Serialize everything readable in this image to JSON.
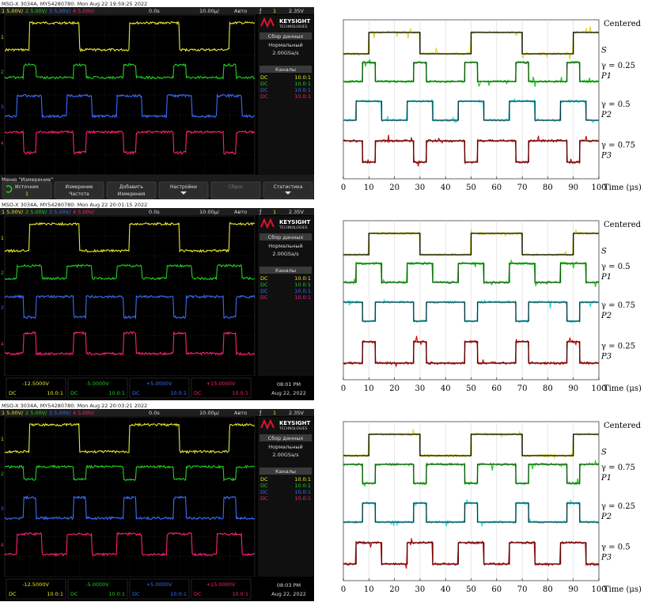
{
  "scopes": [
    {
      "caption": "MSO-X 3034A, MY54280780: Mon Aug 22 19:59:25 2022",
      "header": {
        "ch1": "1  5.00V/",
        "ch2": "2  5.00V/",
        "ch3": "3  5.00V/",
        "ch4": "4  5.00V/",
        "delay": "0.0s",
        "timebase": "10.00µ/",
        "mode": "Авто",
        "trig_sym": "ƒ",
        "trig_ch": "1",
        "trig_level": "2.35V"
      },
      "side": {
        "brand": "KEYSIGHT",
        "brand_sub": "TECHNOLOGIES",
        "acq_title": "Сбор данных",
        "acq_mode": "Нормальный",
        "rate": "2.00GSa/s",
        "channels_title": "Каналы",
        "channels": [
          {
            "coupling": "DC",
            "ratio": "10.0:1"
          },
          {
            "coupling": "DC",
            "ratio": "10.0:1"
          },
          {
            "coupling": "DC",
            "ratio": "10.0:1"
          },
          {
            "coupling": "DC",
            "ratio": "10.0:1"
          }
        ]
      },
      "footer": {
        "type": "menu",
        "menu_title": "Меню \"Измерение\"",
        "softkeys": [
          {
            "l1": "Источник",
            "l2": "1"
          },
          {
            "l1": "Измерение",
            "l2": "Частота"
          },
          {
            "l1": "Добавить",
            "l2": "Измерения"
          },
          {
            "l1": "Настройки",
            "l2": ""
          },
          {
            "l1": "Сброс",
            "l2": ""
          },
          {
            "l1": "Статистика",
            "l2": ""
          }
        ]
      }
    },
    {
      "caption": "MSO-X 3034A, MY54280780: Mon Aug 22 20:01:15 2022",
      "header": {
        "ch1": "1  5.00V/",
        "ch2": "2  5.00V/",
        "ch3": "3  5.00V/",
        "ch4": "4  5.00V/",
        "delay": "0.0s",
        "timebase": "10.00µ/",
        "mode": "Авто",
        "trig_sym": "ƒ",
        "trig_ch": "1",
        "trig_level": "2.35V"
      },
      "side": {
        "brand": "KEYSIGHT",
        "brand_sub": "TECHNOLOGIES",
        "acq_title": "Сбор данных",
        "acq_mode": "Нормальный",
        "rate": "2.00GSa/s",
        "channels_title": "Каналы",
        "channels": [
          {
            "coupling": "DC",
            "ratio": "10.0:1"
          },
          {
            "coupling": "DC",
            "ratio": "10.0:1"
          },
          {
            "coupling": "DC",
            "ratio": "10.0:1"
          },
          {
            "coupling": "DC",
            "ratio": "10.0:1"
          }
        ]
      },
      "footer": {
        "type": "offsets",
        "offsets": [
          {
            "value": "-12.5000V",
            "coupling": "DC",
            "ratio": "10.0:1"
          },
          {
            "value": "-5.0000V",
            "coupling": "DC",
            "ratio": "10.0:1"
          },
          {
            "value": "+5.0000V",
            "coupling": "DC",
            "ratio": "10.0:1"
          },
          {
            "value": "+15.0000V",
            "coupling": "DC",
            "ratio": "10.0:1"
          }
        ],
        "time": "08:01 PM",
        "date": "Aug 22, 2022"
      }
    },
    {
      "caption": "MSO-X 3034A, MY54280780: Mon Aug 22 20:03:21 2022",
      "header": {
        "ch1": "1  5.00V/",
        "ch2": "2  5.00V/",
        "ch3": "3  5.00V/",
        "ch4": "4  5.00V/",
        "delay": "0.0s",
        "timebase": "10.00µ/",
        "mode": "Авто",
        "trig_sym": "ƒ",
        "trig_ch": "1",
        "trig_level": "2.35V"
      },
      "side": {
        "brand": "KEYSIGHT",
        "brand_sub": "TECHNOLOGIES",
        "acq_title": "Сбор данных",
        "acq_mode": "Нормальный",
        "rate": "2.00GSa/s",
        "channels_title": "Каналы",
        "channels": [
          {
            "coupling": "DC",
            "ratio": "10.0:1"
          },
          {
            "coupling": "DC",
            "ratio": "10.0:1"
          },
          {
            "coupling": "DC",
            "ratio": "10.0:1"
          },
          {
            "coupling": "DC",
            "ratio": "10.0:1"
          }
        ]
      },
      "footer": {
        "type": "offsets",
        "offsets": [
          {
            "value": "-12.5000V",
            "coupling": "DC",
            "ratio": "10.0:1"
          },
          {
            "value": "-5.0000V",
            "coupling": "DC",
            "ratio": "10.0:1"
          },
          {
            "value": "+5.0000V",
            "coupling": "DC",
            "ratio": "10.0:1"
          },
          {
            "value": "+15.0000V",
            "coupling": "DC",
            "ratio": "10.0:1"
          }
        ],
        "time": "08:03 PM",
        "date": "Aug 22, 2022"
      }
    }
  ],
  "colors": {
    "ch1": "#e8e82a",
    "ch2": "#1fd11f",
    "ch3": "#3a6cff",
    "ch4": "#ff1f7a",
    "fit": "#000000",
    "fitP1": "#0b5a0b",
    "fitP2": "#083840",
    "fitP3": "#5a0000",
    "measP1": "#22cc22",
    "measP2": "#22dddd",
    "measP3": "#cc1010",
    "measS": "#d8d830"
  },
  "chart_data": [
    {
      "type": "line",
      "title": "",
      "xlabel": "Time (μs)",
      "xlim": [
        0,
        100
      ],
      "xticks": [
        0,
        10,
        20,
        30,
        40,
        50,
        60,
        70,
        80,
        90,
        100
      ],
      "xtick_labels": [
        "0",
        "10",
        "20",
        "30",
        "40",
        "50",
        "60",
        "70",
        "80",
        "90",
        "100"
      ],
      "header": "Centered",
      "series": [
        {
          "name": "S",
          "label": "S",
          "gamma_label": "",
          "gamma": null,
          "role": "source",
          "rises": [
            10,
            50,
            90
          ],
          "falls": [
            30,
            70
          ]
        },
        {
          "name": "P1",
          "label": "P1",
          "gamma_label": "γ = 0.25",
          "gamma": 0.25,
          "role": "P1",
          "rises": [
            7.5,
            27.5,
            47.5,
            67.5,
            87.5
          ],
          "falls": [
            12.5,
            32.5,
            52.5,
            72.5,
            92.5
          ]
        },
        {
          "name": "P2",
          "label": "P2",
          "gamma_label": "γ = 0.5",
          "gamma": 0.5,
          "role": "P2",
          "rises": [
            5,
            25,
            45,
            65,
            85
          ],
          "falls": [
            15,
            35,
            55,
            75,
            95
          ]
        },
        {
          "name": "P3",
          "label": "P3",
          "gamma_label": "γ = 0.75",
          "gamma": 0.75,
          "role": "P3",
          "rises": [
            -10,
            12.5,
            32.5,
            52.5,
            72.5,
            92.5
          ],
          "falls": [
            7.5,
            27.5,
            47.5,
            67.5,
            87.5
          ]
        }
      ]
    },
    {
      "type": "line",
      "title": "",
      "xlabel": "Time (μs)",
      "xlim": [
        0,
        100
      ],
      "xticks": [
        0,
        10,
        20,
        30,
        40,
        50,
        60,
        70,
        80,
        90,
        100
      ],
      "xtick_labels": [
        "0",
        "10",
        "20",
        "30",
        "40",
        "50",
        "60",
        "70",
        "80",
        "90",
        "100"
      ],
      "header": "Centered",
      "series": [
        {
          "name": "S",
          "label": "S",
          "gamma_label": "",
          "gamma": null,
          "role": "source",
          "rises": [
            10,
            50,
            90
          ],
          "falls": [
            30,
            70
          ]
        },
        {
          "name": "P1",
          "label": "P1",
          "gamma_label": "γ = 0.5",
          "gamma": 0.5,
          "role": "P1",
          "rises": [
            5,
            25,
            45,
            65,
            85
          ],
          "falls": [
            15,
            35,
            55,
            75,
            95
          ]
        },
        {
          "name": "P2",
          "label": "P2",
          "gamma_label": "γ = 0.75",
          "gamma": 0.75,
          "role": "P2",
          "rises": [
            -10,
            12.5,
            32.5,
            52.5,
            72.5,
            92.5
          ],
          "falls": [
            7.5,
            27.5,
            47.5,
            67.5,
            87.5
          ]
        },
        {
          "name": "P3",
          "label": "P3",
          "gamma_label": "γ = 0.25",
          "gamma": 0.25,
          "role": "P3",
          "rises": [
            7.5,
            27.5,
            47.5,
            67.5,
            87.5
          ],
          "falls": [
            12.5,
            32.5,
            52.5,
            72.5,
            92.5
          ]
        }
      ]
    },
    {
      "type": "line",
      "title": "",
      "xlabel": "Time (μs)",
      "xlim": [
        0,
        100
      ],
      "xticks": [
        0,
        10,
        20,
        30,
        40,
        50,
        60,
        70,
        80,
        90,
        100
      ],
      "xtick_labels": [
        "0",
        "10",
        "20",
        "30",
        "40",
        "50",
        "60",
        "70",
        "80",
        "90",
        "100"
      ],
      "header": "Centered",
      "series": [
        {
          "name": "S",
          "label": "S",
          "gamma_label": "",
          "gamma": null,
          "role": "source",
          "rises": [
            10,
            50,
            90
          ],
          "falls": [
            30,
            70
          ]
        },
        {
          "name": "P1",
          "label": "P1",
          "gamma_label": "γ = 0.75",
          "gamma": 0.75,
          "role": "P1",
          "rises": [
            -10,
            12.5,
            32.5,
            52.5,
            72.5,
            92.5
          ],
          "falls": [
            7.5,
            27.5,
            47.5,
            67.5,
            87.5
          ]
        },
        {
          "name": "P2",
          "label": "P2",
          "gamma_label": "γ = 0.25",
          "gamma": 0.25,
          "role": "P2",
          "rises": [
            7.5,
            27.5,
            47.5,
            67.5,
            87.5
          ],
          "falls": [
            12.5,
            32.5,
            52.5,
            72.5,
            92.5
          ]
        },
        {
          "name": "P3",
          "label": "P3",
          "gamma_label": "γ = 0.5",
          "gamma": 0.5,
          "role": "P3",
          "rises": [
            5,
            25,
            45,
            65,
            85
          ],
          "falls": [
            15,
            35,
            55,
            75,
            95
          ]
        }
      ]
    }
  ]
}
